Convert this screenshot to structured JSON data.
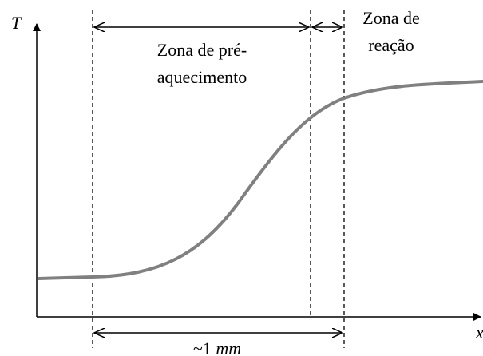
{
  "axes": {
    "y_label": "T",
    "x_label": "x"
  },
  "zones": [
    {
      "label_lines": [
        "Zona de pré-",
        "aquecimento"
      ]
    },
    {
      "label_lines": [
        "Zona de",
        "reação"
      ]
    }
  ],
  "width_label": {
    "prefix": "~1",
    "unit": "mm"
  }
}
